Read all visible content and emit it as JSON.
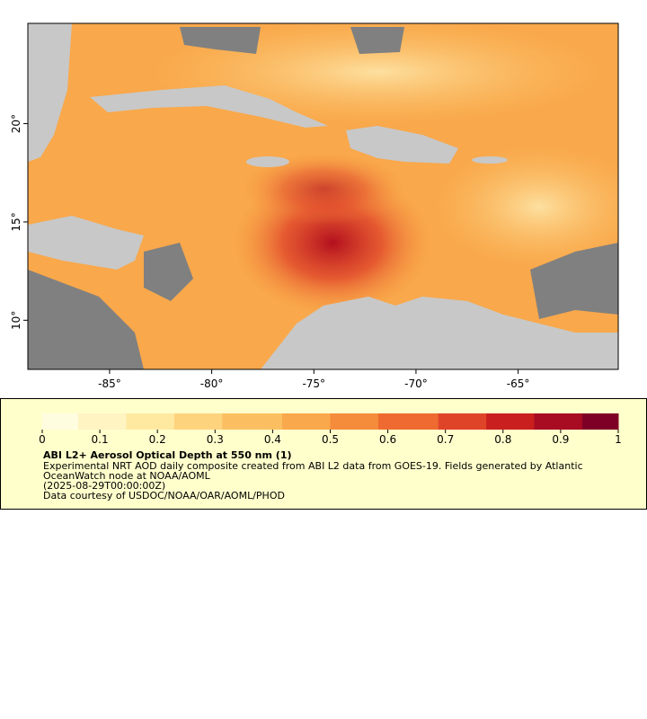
{
  "map": {
    "xlim": [
      -89,
      -60.1
    ],
    "ylim": [
      7.5,
      25.1
    ],
    "xticks": [
      {
        "value": -85,
        "label": "-85°"
      },
      {
        "value": -80,
        "label": "-80°"
      },
      {
        "value": -75,
        "label": "-75°"
      },
      {
        "value": -70,
        "label": "-70°"
      },
      {
        "value": -65,
        "label": "-65°"
      }
    ],
    "yticks": [
      {
        "value": 10,
        "label": "10°"
      },
      {
        "value": 15,
        "label": "15°"
      },
      {
        "value": 20,
        "label": "20°"
      }
    ]
  },
  "colorbar": {
    "lim": [
      0,
      1
    ],
    "ticks": [
      0,
      0.1,
      0.2,
      0.3,
      0.4,
      0.5,
      0.6,
      0.7,
      0.8,
      0.9,
      1
    ],
    "colors": [
      "#fffde0",
      "#fff4c2",
      "#ffe8a0",
      "#fdd37e",
      "#fbbf62",
      "#f9a84b",
      "#f58c3b",
      "#ee6a30",
      "#e04428",
      "#c9201f",
      "#a70c22",
      "#7f0026"
    ]
  },
  "legend": {
    "title": "ABI L2+ Aerosol Optical Depth at 550 nm (1)",
    "lines": [
      "Experimental NRT AOD daily composite created from ABI L2 data from GOES-19. Fields generated by Atlantic",
      "OceanWatch node at NOAA/AOML",
      "(2025-08-29T00:00:00Z)",
      "Data courtesy of USDOC/NOAA/OAR/AOML/PHOD"
    ]
  }
}
